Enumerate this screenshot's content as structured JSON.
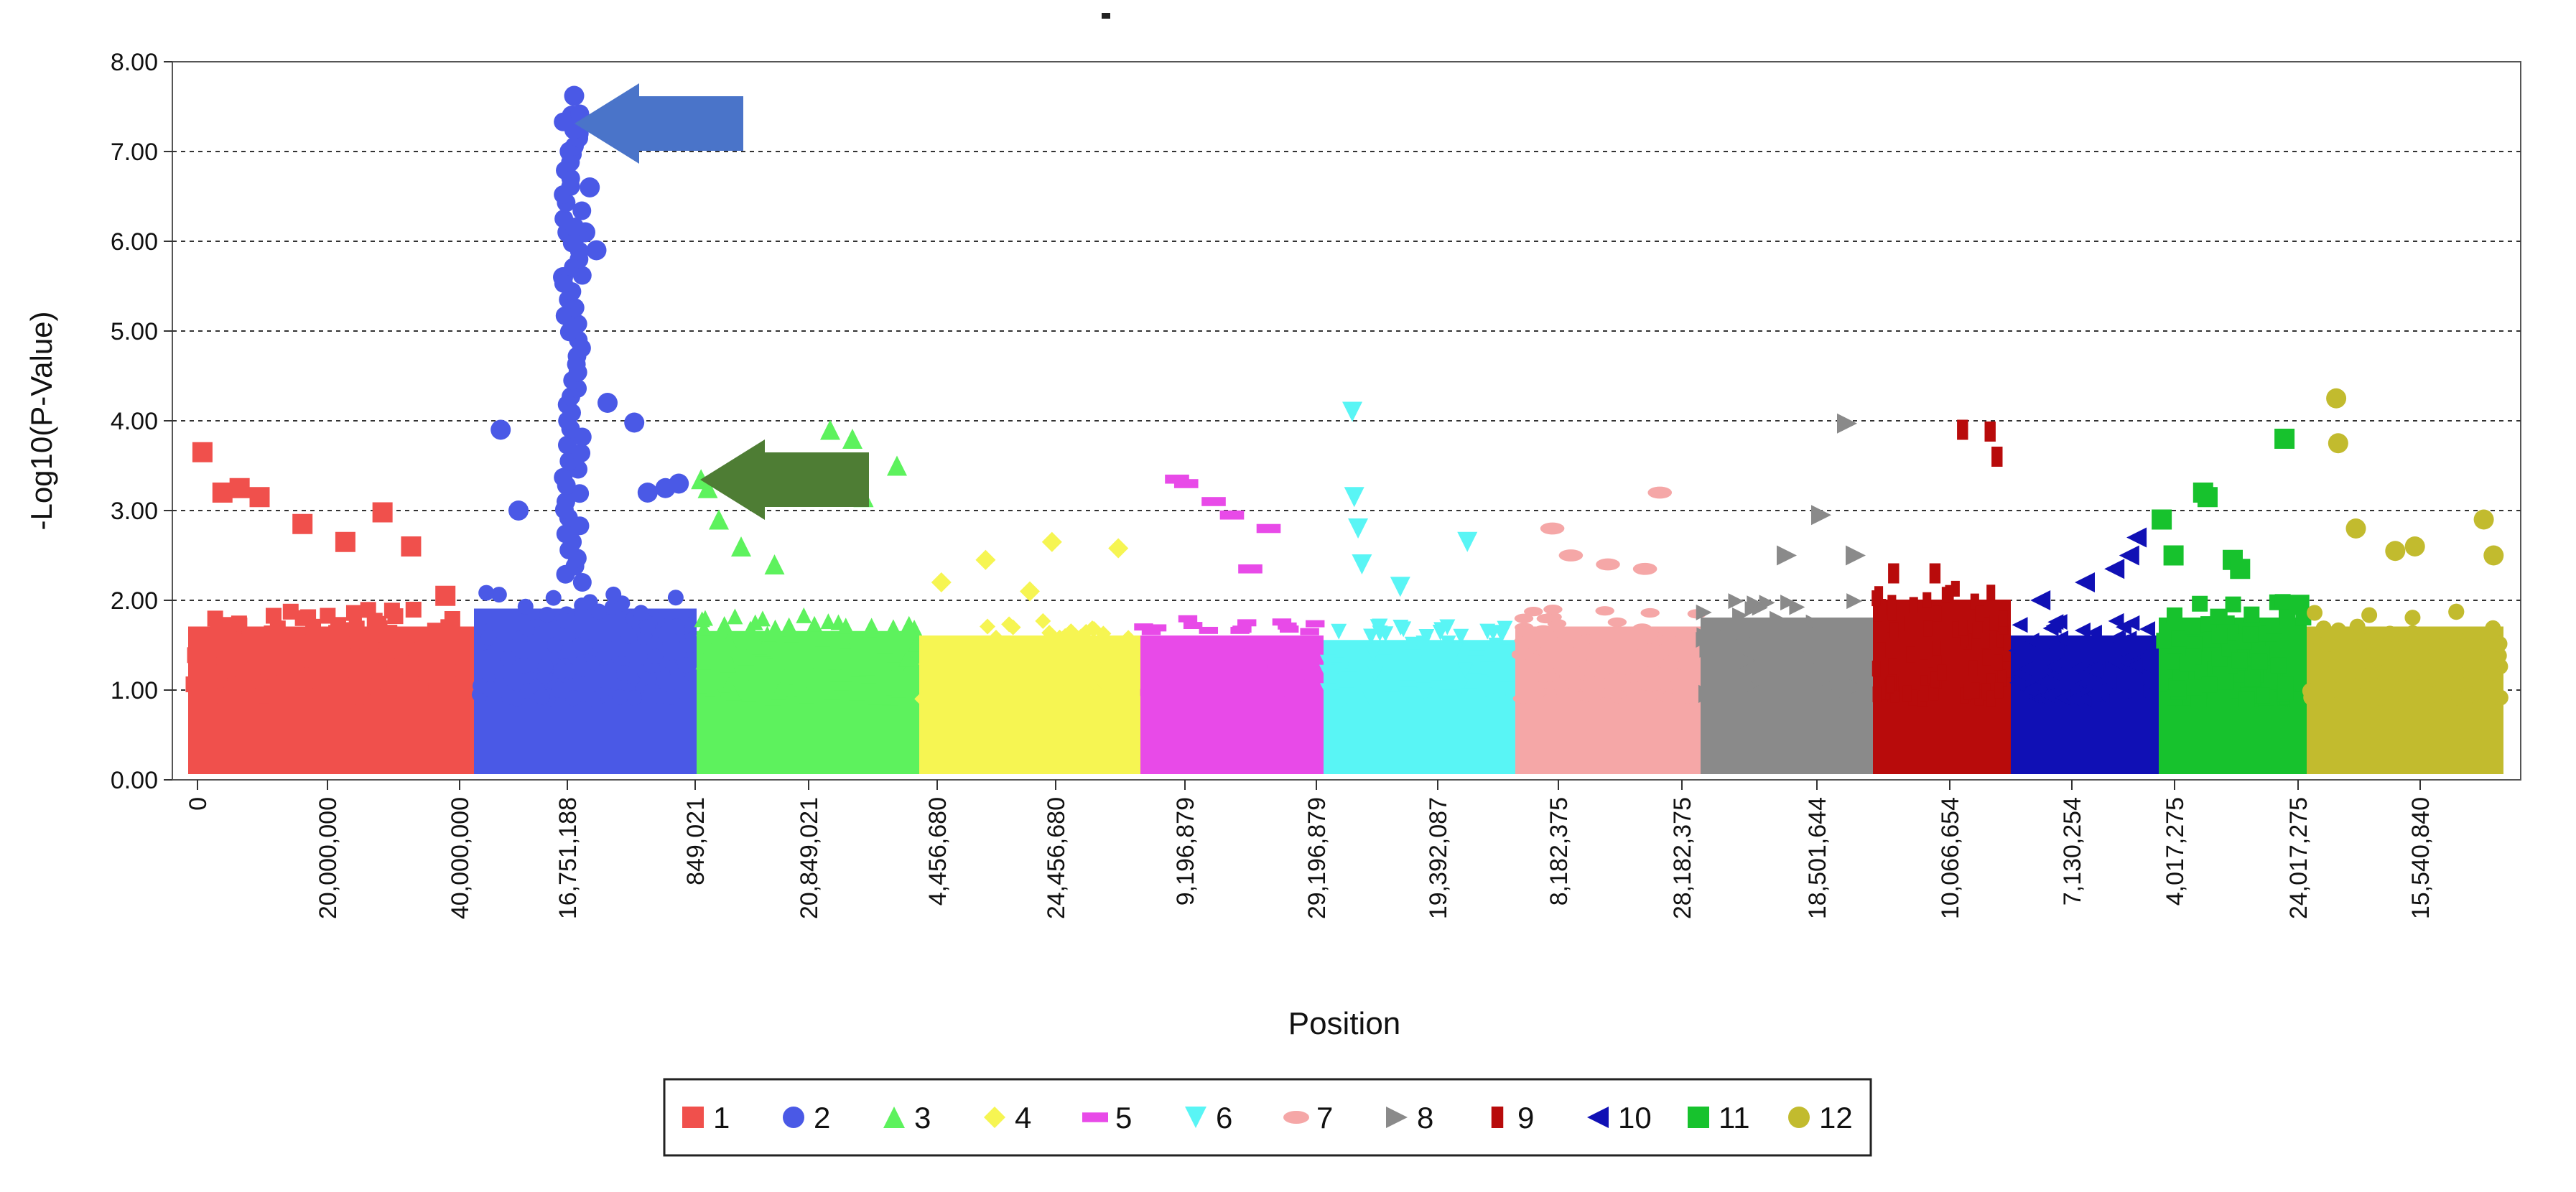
{
  "chart_data": {
    "type": "scatter",
    "subtype": "manhattan",
    "title": "",
    "xlabel": "Position",
    "ylabel": "-Log10(P-Value)",
    "ylim": [
      0,
      8
    ],
    "yticks": [
      "0.00",
      "1.00",
      "2.00",
      "3.00",
      "4.00",
      "5.00",
      "6.00",
      "7.00",
      "8.00"
    ],
    "grid": "horizontal dashed",
    "legend_position": "bottom-center",
    "xtick_labels": [
      "0",
      "20,000,000",
      "40,000,000",
      "16,751,188",
      "849,021",
      "20,849,021",
      "4,456,680",
      "24,456,680",
      "9,196,879",
      "29,196,879",
      "19,392,087",
      "8,182,375",
      "28,182,375",
      "18,501,644",
      "10,066,654",
      "7,130,254",
      "4,017,275",
      "24,017,275",
      "15,540,840"
    ],
    "series": [
      {
        "name": "1",
        "color": "#f0504c",
        "marker": "square",
        "base_max": 1.9,
        "peaks": [
          [
            0.05,
            3.65
          ],
          [
            0.12,
            3.2
          ],
          [
            0.18,
            3.25
          ],
          [
            0.25,
            3.15
          ],
          [
            0.4,
            2.85
          ],
          [
            0.55,
            2.65
          ],
          [
            0.68,
            2.98
          ],
          [
            0.78,
            2.6
          ],
          [
            0.9,
            2.05
          ]
        ]
      },
      {
        "name": "2",
        "color": "#4a59e6",
        "marker": "circle",
        "base_max": 2.1,
        "peaks": [
          [
            0.12,
            3.9
          ],
          [
            0.2,
            3.0
          ],
          [
            0.4,
            5.6
          ],
          [
            0.42,
            6.1
          ],
          [
            0.43,
            7.0
          ],
          [
            0.44,
            7.4
          ],
          [
            0.45,
            7.62
          ],
          [
            0.47,
            7.2
          ],
          [
            0.5,
            6.1
          ],
          [
            0.52,
            6.6
          ],
          [
            0.55,
            5.9
          ],
          [
            0.6,
            4.2
          ],
          [
            0.72,
            3.98
          ],
          [
            0.78,
            3.2
          ],
          [
            0.86,
            3.25
          ],
          [
            0.92,
            3.3
          ]
        ]
      },
      {
        "name": "3",
        "color": "#5df25d",
        "marker": "triangle-up",
        "base_max": 1.85,
        "peaks": [
          [
            0.02,
            3.35
          ],
          [
            0.05,
            3.25
          ],
          [
            0.1,
            2.9
          ],
          [
            0.2,
            2.6
          ],
          [
            0.35,
            2.4
          ],
          [
            0.6,
            3.9
          ],
          [
            0.7,
            3.8
          ],
          [
            0.75,
            3.15
          ],
          [
            0.9,
            3.5
          ]
        ]
      },
      {
        "name": "4",
        "color": "#f6f552",
        "marker": "diamond",
        "base_max": 1.8,
        "peaks": [
          [
            0.1,
            2.2
          ],
          [
            0.3,
            2.45
          ],
          [
            0.5,
            2.1
          ],
          [
            0.6,
            2.65
          ],
          [
            0.9,
            2.58
          ]
        ]
      },
      {
        "name": "5",
        "color": "#e84ae8",
        "marker": "dash",
        "base_max": 1.8,
        "peaks": [
          [
            0.2,
            3.35
          ],
          [
            0.25,
            3.3
          ],
          [
            0.4,
            3.1
          ],
          [
            0.5,
            2.95
          ],
          [
            0.6,
            2.35
          ],
          [
            0.7,
            2.8
          ]
        ]
      },
      {
        "name": "6",
        "color": "#59f5f5",
        "marker": "triangle-down",
        "base_max": 1.75,
        "peaks": [
          [
            0.15,
            4.1
          ],
          [
            0.16,
            3.15
          ],
          [
            0.18,
            2.8
          ],
          [
            0.2,
            2.4
          ],
          [
            0.4,
            2.15
          ],
          [
            0.75,
            2.65
          ]
        ]
      },
      {
        "name": "7",
        "color": "#f5a7a7",
        "marker": "ellipse",
        "base_max": 1.9,
        "peaks": [
          [
            0.2,
            2.8
          ],
          [
            0.3,
            2.5
          ],
          [
            0.5,
            2.4
          ],
          [
            0.7,
            2.35
          ],
          [
            0.78,
            3.2
          ]
        ]
      },
      {
        "name": "8",
        "color": "#8a8a8a",
        "marker": "triangle-right",
        "base_max": 2.0,
        "peaks": [
          [
            0.5,
            2.5
          ],
          [
            0.7,
            2.95
          ],
          [
            0.85,
            3.97
          ],
          [
            0.9,
            2.5
          ]
        ]
      },
      {
        "name": "9",
        "color": "#b80b0b",
        "marker": "bar",
        "base_max": 2.2,
        "peaks": [
          [
            0.15,
            2.3
          ],
          [
            0.45,
            2.3
          ],
          [
            0.65,
            3.9
          ],
          [
            0.85,
            3.88
          ],
          [
            0.9,
            3.6
          ]
        ]
      },
      {
        "name": "10",
        "color": "#1010b5",
        "marker": "triangle-left",
        "base_max": 1.8,
        "peaks": [
          [
            0.2,
            2.0
          ],
          [
            0.5,
            2.2
          ],
          [
            0.7,
            2.35
          ],
          [
            0.8,
            2.5
          ],
          [
            0.85,
            2.7
          ]
        ]
      },
      {
        "name": "11",
        "color": "#17c22d",
        "marker": "square",
        "base_max": 2.0,
        "peaks": [
          [
            0.02,
            2.9
          ],
          [
            0.1,
            2.5
          ],
          [
            0.3,
            3.2
          ],
          [
            0.33,
            3.15
          ],
          [
            0.5,
            2.45
          ],
          [
            0.55,
            2.35
          ],
          [
            0.85,
            3.8
          ],
          [
            0.95,
            1.95
          ]
        ]
      },
      {
        "name": "12",
        "color": "#c2bb2e",
        "marker": "circle",
        "base_max": 1.9,
        "peaks": [
          [
            0.15,
            4.25
          ],
          [
            0.16,
            3.75
          ],
          [
            0.25,
            2.8
          ],
          [
            0.45,
            2.55
          ],
          [
            0.55,
            2.6
          ],
          [
            0.9,
            2.9
          ],
          [
            0.95,
            2.5
          ]
        ]
      }
    ],
    "annotations": [
      {
        "type": "arrow",
        "direction": "left",
        "color": "#4a74c9",
        "points_to": "series 2 peak"
      },
      {
        "type": "arrow",
        "direction": "left",
        "color": "#4e7d34",
        "points_to": "series 3 peak"
      }
    ]
  }
}
